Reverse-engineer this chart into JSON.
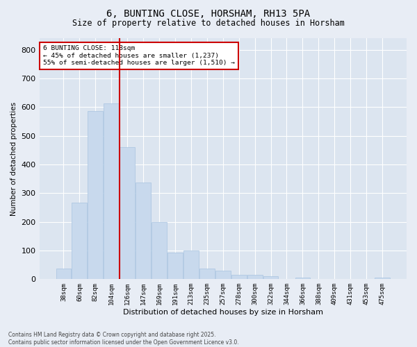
{
  "title": "6, BUNTING CLOSE, HORSHAM, RH13 5PA",
  "subtitle": "Size of property relative to detached houses in Horsham",
  "xlabel": "Distribution of detached houses by size in Horsham",
  "ylabel": "Number of detached properties",
  "categories": [
    "38sqm",
    "60sqm",
    "82sqm",
    "104sqm",
    "126sqm",
    "147sqm",
    "169sqm",
    "191sqm",
    "213sqm",
    "235sqm",
    "257sqm",
    "278sqm",
    "300sqm",
    "322sqm",
    "344sqm",
    "366sqm",
    "388sqm",
    "409sqm",
    "431sqm",
    "453sqm",
    "475sqm"
  ],
  "values": [
    38,
    268,
    585,
    612,
    460,
    337,
    200,
    93,
    101,
    38,
    30,
    16,
    15,
    10,
    0,
    5,
    2,
    0,
    0,
    0,
    5
  ],
  "bar_color": "#c8d9ed",
  "bar_edge_color": "#a8c4e0",
  "vline_color": "#cc0000",
  "annotation_title": "6 BUNTING CLOSE: 118sqm",
  "annotation_line2": "← 45% of detached houses are smaller (1,237)",
  "annotation_line3": "55% of semi-detached houses are larger (1,510) →",
  "annotation_box_color": "#cc0000",
  "ylim": [
    0,
    840
  ],
  "yticks": [
    0,
    100,
    200,
    300,
    400,
    500,
    600,
    700,
    800
  ],
  "footer1": "Contains HM Land Registry data © Crown copyright and database right 2025.",
  "footer2": "Contains public sector information licensed under the Open Government Licence v3.0.",
  "background_color": "#e8edf5",
  "bar_background": "#dce5f0"
}
